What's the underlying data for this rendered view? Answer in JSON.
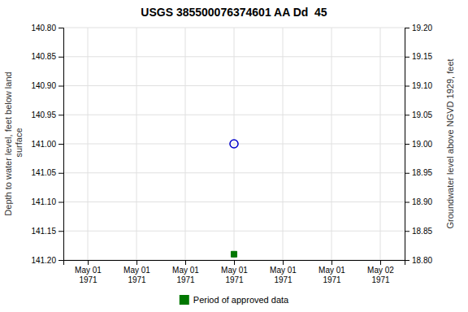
{
  "chart_data": {
    "type": "scatter",
    "title": "USGS 385500076374601 AA Dd  45",
    "ylabel": "Depth to water level, feet below land\n surface",
    "y2label": "Groundwater level above NGVD 1929, feet",
    "categories": [
      "May 01\n1971",
      "May 01\n1971",
      "May 01\n1971",
      "May 01\n1971",
      "May 01\n1971",
      "May 01\n1971",
      "May 02\n1971"
    ],
    "series": [
      {
        "color": "#0000cc",
        "marker": "circle",
        "values": [
          null,
          null,
          null,
          141.0,
          null,
          null,
          null
        ]
      },
      {
        "name": "Period of approved data",
        "color": "#007700",
        "marker": "square",
        "values": [
          null,
          null,
          null,
          141.19,
          null,
          null,
          null
        ]
      }
    ],
    "ylim": [
      141.2,
      140.8
    ],
    "yticks": [
      {
        "value": 140.8,
        "label": "140.80"
      },
      {
        "value": 140.85,
        "label": "140.85"
      },
      {
        "value": 140.9,
        "label": "140.90"
      },
      {
        "value": 140.95,
        "label": "140.95"
      },
      {
        "value": 141.0,
        "label": "141.00"
      },
      {
        "value": 141.05,
        "label": "141.05"
      },
      {
        "value": 141.1,
        "label": "141.10"
      },
      {
        "value": 141.15,
        "label": "141.15"
      },
      {
        "value": 141.2,
        "label": "141.20"
      }
    ],
    "y2lim": [
      18.8,
      19.2
    ],
    "y2ticks": [
      {
        "value": 18.8,
        "label": "18.80"
      },
      {
        "value": 18.85,
        "label": "18.85"
      },
      {
        "value": 18.9,
        "label": "18.90"
      },
      {
        "value": 18.95,
        "label": "18.95"
      },
      {
        "value": 19.0,
        "label": "19.00"
      },
      {
        "value": 19.05,
        "label": "19.05"
      },
      {
        "value": 19.1,
        "label": "19.10"
      },
      {
        "value": 19.15,
        "label": "19.15"
      },
      {
        "value": 19.2,
        "label": "19.20"
      }
    ],
    "grid": true,
    "legend": "bottom"
  }
}
